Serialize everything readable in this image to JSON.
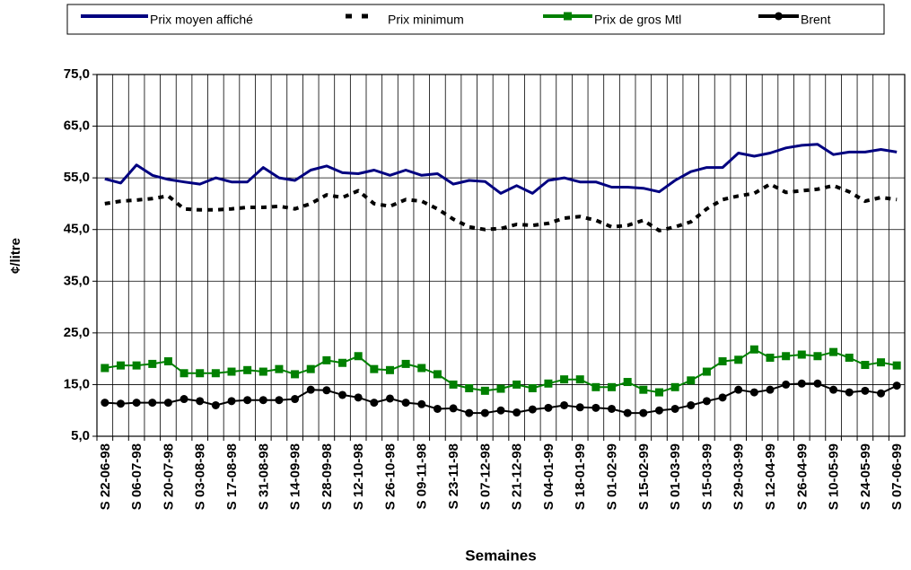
{
  "chart_data": {
    "type": "line",
    "y_label": "¢/litre",
    "x_label": "Semaines",
    "categories": [
      "S 22-06-98",
      null,
      "S 06-07-98",
      null,
      "S 20-07-98",
      null,
      "S 03-08-98",
      null,
      "S 17-08-98",
      null,
      "S 31-08-98",
      null,
      "S 14-09-98",
      null,
      "S 28-09-98",
      null,
      "S 12-10-98",
      null,
      "S 26-10-98",
      null,
      "S 09-11-98",
      null,
      "S 23-11-98",
      null,
      "S 07-12-98",
      null,
      "S 21-12-98",
      null,
      "S 04-01-99",
      null,
      "S 18-01-99",
      null,
      "S 01-02-99",
      null,
      "S 15-02-99",
      null,
      "S 01-03-99",
      null,
      "S 15-03-99",
      null,
      "S 29-03-99",
      null,
      "S 12-04-99",
      null,
      "S 26-04-99",
      null,
      "S 10-05-99",
      null,
      "S 24-05-99",
      null,
      "S 07-06-99"
    ],
    "series": [
      {
        "name": "Prix moyen affiché",
        "color": "#000080",
        "line_style": "solid",
        "marker": "none",
        "values": [
          54.8,
          54,
          57.5,
          55.5,
          54.7,
          54.2,
          53.8,
          55,
          54.2,
          54.2,
          57,
          55,
          54.5,
          56.5,
          57.3,
          56,
          55.8,
          56.5,
          55.5,
          56.5,
          55.5,
          55.8,
          53.8,
          54.5,
          54.3,
          52,
          53.5,
          52,
          54.5,
          55,
          54.2,
          54.2,
          53.2,
          53.2,
          53,
          52.3,
          54.5,
          56.2,
          57,
          57,
          59.8,
          59.2,
          59.8,
          60.8,
          61.3,
          61.5,
          59.5,
          60,
          60,
          60.5,
          60
        ]
      },
      {
        "name": "Prix minimum",
        "color": "#000000",
        "line_style": "dashed",
        "marker": "none",
        "values": [
          50,
          50.5,
          50.7,
          51,
          51.5,
          49,
          48.8,
          48.8,
          49,
          49.3,
          49.3,
          49.5,
          49,
          50,
          51.7,
          51.2,
          52.5,
          50,
          49.5,
          50.8,
          50.5,
          49,
          47,
          45.5,
          45,
          45.2,
          46,
          45.8,
          46.2,
          47.2,
          47.5,
          46.8,
          45.5,
          45.8,
          46.8,
          44.8,
          45.5,
          46.5,
          49,
          50.8,
          51.5,
          52,
          53.8,
          52.2,
          52.5,
          52.8,
          53.5,
          52.3,
          50.5,
          51.2,
          50.8
        ]
      },
      {
        "name": "Prix de gros Mtl",
        "color": "#008000",
        "line_style": "solid",
        "marker": "square",
        "values": [
          18.2,
          18.7,
          18.7,
          19,
          19.5,
          17.2,
          17.2,
          17.2,
          17.5,
          17.8,
          17.5,
          18,
          17,
          18,
          19.7,
          19.2,
          20.5,
          18,
          17.8,
          19,
          18.2,
          17,
          15,
          14.3,
          13.8,
          14.2,
          15,
          14.3,
          15.2,
          16,
          16,
          14.5,
          14.5,
          15.5,
          14,
          13.5,
          14.5,
          15.8,
          17.5,
          19.5,
          19.8,
          21.8,
          20.2,
          20.5,
          20.8,
          20.5,
          21.3,
          20.2,
          18.8,
          19.3,
          18.7
        ]
      },
      {
        "name": "Brent",
        "color": "#000000",
        "line_style": "solid",
        "marker": "circle",
        "values": [
          11.5,
          11.3,
          11.5,
          11.5,
          11.5,
          12.2,
          11.8,
          11,
          11.8,
          12,
          12,
          12,
          12.2,
          14,
          13.9,
          13,
          12.5,
          11.5,
          12.3,
          11.5,
          11.2,
          10.3,
          10.4,
          9.5,
          9.5,
          10,
          9.6,
          10.2,
          10.5,
          11,
          10.6,
          10.5,
          10.3,
          9.5,
          9.5,
          10,
          10.3,
          11,
          11.8,
          12.5,
          14,
          13.5,
          14,
          15,
          15.2,
          15.2,
          14,
          13.5,
          13.8,
          13.3,
          14.8
        ]
      }
    ],
    "ylim": [
      5,
      75
    ],
    "yticks": [
      {
        "value": 5,
        "label": "5,0"
      },
      {
        "value": 15,
        "label": "15,0"
      },
      {
        "value": 25,
        "label": "25,0"
      },
      {
        "value": 35,
        "label": "35,0"
      },
      {
        "value": 45,
        "label": "45,0"
      },
      {
        "value": 55,
        "label": "55,0"
      },
      {
        "value": 65,
        "label": "65,0"
      },
      {
        "value": 75,
        "label": "75,0"
      }
    ],
    "grid": true,
    "legend": "top"
  }
}
